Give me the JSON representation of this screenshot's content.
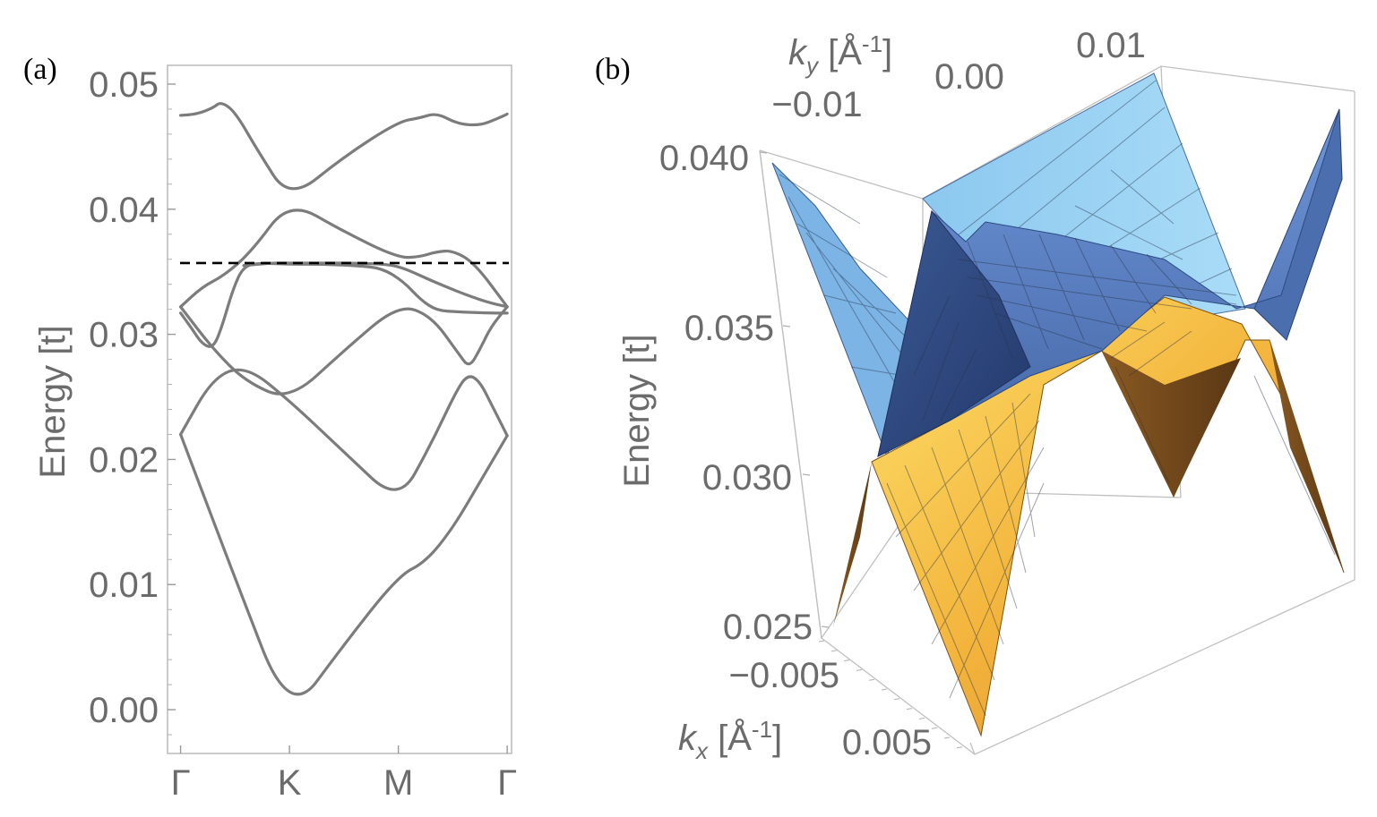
{
  "chart_data": [
    {
      "type": "line",
      "panel_label": "(a)",
      "title": "",
      "xlabel": "",
      "ylabel": "Energy [t]",
      "ylim": [
        -0.0035,
        0.0515
      ],
      "yticks": [
        "0.00",
        "0.01",
        "0.02",
        "0.03",
        "0.04",
        "0.05"
      ],
      "ytick_values": [
        0.0,
        0.01,
        0.02,
        0.03,
        0.04,
        0.05
      ],
      "xticks": [
        "Γ",
        "K",
        "M",
        "Γ"
      ],
      "xtick_values": [
        0,
        1,
        2,
        3
      ],
      "xlim": [
        -0.12,
        3.04
      ],
      "reference_line": {
        "y": 0.0357,
        "style": "dashed",
        "color": "#000000"
      },
      "colors": {
        "gray_band": "#7c7c7c",
        "blue_band": "#5479b5",
        "orange_band": "#e0a030"
      },
      "series": [
        {
          "name": "band-1",
          "color": "#7c7c7c",
          "x": [
            0,
            0.5,
            1,
            1.5,
            2,
            2.25,
            2.5,
            2.75,
            3
          ],
          "y": [
            0.022,
            0.0105,
            -0.0007,
            0.0052,
            0.0107,
            0.0118,
            0.0145,
            0.0182,
            0.0219
          ]
        },
        {
          "name": "band-2",
          "color": "#7c7c7c",
          "x": [
            0,
            0.3,
            0.6,
            1,
            1.5,
            2,
            2.3,
            2.55,
            2.65,
            2.75,
            2.85,
            3
          ],
          "y": [
            0.022,
            0.0266,
            0.0275,
            0.0247,
            0.0206,
            0.0165,
            0.0212,
            0.0258,
            0.0268,
            0.0262,
            0.0245,
            0.0219
          ]
        },
        {
          "name": "band-3",
          "color": "#7c7c7c",
          "x": [
            0,
            0.3,
            0.6,
            1,
            1.5,
            2,
            2.3,
            2.55,
            2.65,
            2.75,
            2.85,
            3
          ],
          "y": [
            0.0322,
            0.0288,
            0.0262,
            0.0247,
            0.0287,
            0.0324,
            0.0315,
            0.0285,
            0.0273,
            0.0288,
            0.0306,
            0.0322
          ]
        },
        {
          "name": "band-4",
          "color": "#7c7c7c",
          "x": [
            0,
            0.2,
            0.4,
            0.65,
            1,
            1.5,
            2,
            2.2,
            2.35,
            2.5,
            2.7,
            3
          ],
          "y": [
            0.0322,
            0.0338,
            0.0347,
            0.0366,
            0.0407,
            0.0382,
            0.0361,
            0.0362,
            0.0366,
            0.0367,
            0.0357,
            0.0322
          ]
        },
        {
          "name": "band-5",
          "color": "#7c7c7c",
          "x": [
            0,
            0.15,
            0.3,
            0.37,
            0.5,
            0.7,
            1,
            1.5,
            2,
            2.2,
            2.35,
            2.55,
            2.75,
            2.9,
            3
          ],
          "y": [
            0.0475,
            0.0476,
            0.0481,
            0.0486,
            0.0478,
            0.0448,
            0.0407,
            0.0442,
            0.047,
            0.0473,
            0.0477,
            0.0468,
            0.0467,
            0.0472,
            0.0476
          ]
        },
        {
          "name": "blue-band",
          "color": "#5479b5",
          "x": [
            0.58,
            0.7,
            0.85,
            1,
            1.3,
            1.6,
            1.9,
            2.05,
            2.3,
            2.55,
            2.8,
            3
          ],
          "y": [
            0.0355,
            0.0356,
            0.0357,
            0.0357,
            0.0357,
            0.0357,
            0.0356,
            0.0353,
            0.0343,
            0.0334,
            0.0326,
            0.0322
          ]
        },
        {
          "name": "orange-band",
          "color": "#e0a030",
          "x": [
            0,
            0.1,
            0.2,
            0.3,
            0.38,
            0.48,
            0.58,
            0.75,
            1,
            1.3,
            1.6,
            1.85,
            2.05,
            2.2,
            2.35,
            2.55,
            2.8,
            3
          ],
          "y": [
            0.0317,
            0.0305,
            0.0292,
            0.0289,
            0.0306,
            0.0336,
            0.0355,
            0.0357,
            0.0356,
            0.0356,
            0.0355,
            0.0353,
            0.0342,
            0.0328,
            0.0319,
            0.0318,
            0.0317,
            0.0317
          ]
        }
      ]
    },
    {
      "type": "surface3d",
      "panel_label": "(b)",
      "zlabel": "Energy [t]",
      "zticks": [
        "0.025",
        "0.030",
        "0.035",
        "0.040"
      ],
      "ztick_values": [
        0.025,
        0.03,
        0.035,
        0.04
      ],
      "ylabel_prefix": "k",
      "ylabel_sub": "y",
      "ylabel_unit": " [Å",
      "ylabel_sup": "-1",
      "ylabel_close": "]",
      "yticks": [
        "−0.01",
        "0.00",
        "0.01"
      ],
      "xlabel_prefix": "k",
      "xlabel_sub": "x",
      "xlabel_unit": " [Å",
      "xlabel_sup": "-1",
      "xlabel_close": "]",
      "xticks": [
        "−0.005",
        "0.005"
      ],
      "surfaces": [
        {
          "name": "upper-band",
          "color": "#5479b5"
        },
        {
          "name": "lower-band",
          "color": "#e0a030"
        }
      ]
    }
  ]
}
